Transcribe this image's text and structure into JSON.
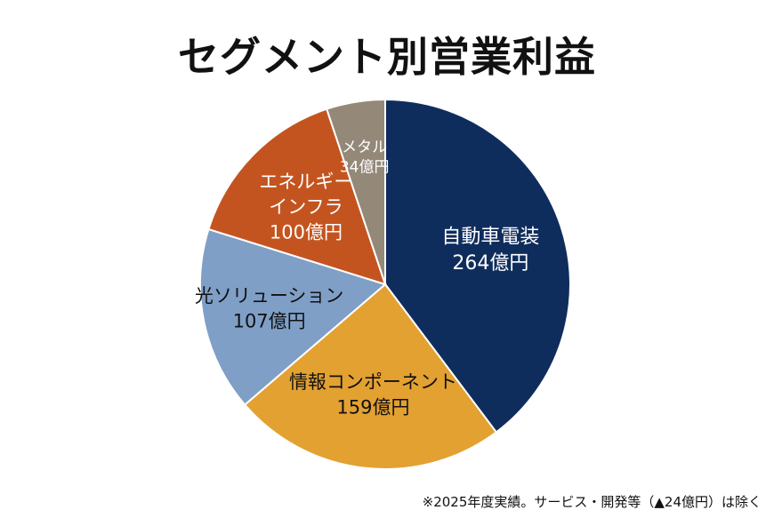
{
  "title": "セグメント別営業利益",
  "footnote": "※2025年度実績。サービス・開発等（▲24億円）は除く",
  "chart_data": {
    "type": "pie",
    "title": "セグメント別営業利益",
    "unit": "億円",
    "slices": [
      {
        "name": "自動車電装",
        "value": 264,
        "label_lines": [
          "自動車電装",
          "264億円"
        ],
        "color": "#0f2d5c",
        "text_color": "#ffffff"
      },
      {
        "name": "情報コンポーネント",
        "value": 159,
        "label_lines": [
          "情報コンポーネント",
          "159億円"
        ],
        "color": "#e3a132",
        "text_color": "#111111"
      },
      {
        "name": "光ソリューション",
        "value": 107,
        "label_lines": [
          "光ソリューション",
          "107億円"
        ],
        "color": "#7f9fc7",
        "text_color": "#111111"
      },
      {
        "name": "エネルギーインフラ",
        "value": 100,
        "label_lines": [
          "エネルギー",
          "インフラ",
          "100億円"
        ],
        "color": "#c4541f",
        "text_color": "#ffffff"
      },
      {
        "name": "メタル",
        "value": 34,
        "label_lines": [
          "メタル",
          "34億円"
        ],
        "color": "#948878",
        "text_color": "#ffffff"
      }
    ]
  }
}
